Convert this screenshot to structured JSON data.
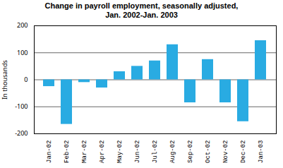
{
  "chart_data": {
    "type": "bar",
    "title": "Change in payroll employment, seasonally adjusted,\nJan. 2002-Jan. 2003",
    "categories": [
      "Jan-02",
      "Feb-02",
      "Mar-02",
      "Apr-02",
      "May-02",
      "Jun-02",
      "Jul-02",
      "Aug-02",
      "Sep-02",
      "Oct-02",
      "Nov-02",
      "Dec-02",
      "Jan-03"
    ],
    "values": [
      -25,
      -165,
      -10,
      -30,
      30,
      50,
      70,
      130,
      -85,
      75,
      -85,
      -155,
      145
    ],
    "color": "#29ABE2",
    "ylabel": "In thousands",
    "ylim": [
      -200,
      200
    ],
    "yticks": [
      -200,
      -100,
      0,
      100,
      200
    ],
    "grid": true
  }
}
